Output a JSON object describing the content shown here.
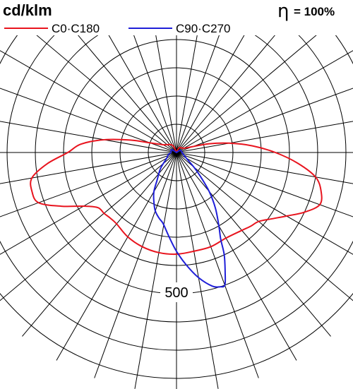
{
  "chart_data": {
    "type": "polar",
    "unit": "cd/klm",
    "efficiency": {
      "symbol": "η",
      "text": "= 100%"
    },
    "radial_tick_labels": [
      "500"
    ],
    "radial_max": 850,
    "grid_ring_step": 100,
    "angle_grid_step_deg": 10,
    "angle_zero": "down",
    "legend_placement": "top-left",
    "series": [
      {
        "name": "C0·C180",
        "color": "#e8141e",
        "points": [
          [
            -180,
            0
          ],
          [
            -150,
            30
          ],
          [
            -120,
            55
          ],
          [
            -110,
            100
          ],
          [
            -105,
            170
          ],
          [
            -100,
            260
          ],
          [
            -95,
            340
          ],
          [
            -90,
            385
          ],
          [
            -85,
            460
          ],
          [
            -80,
            520
          ],
          [
            -75,
            530
          ],
          [
            -70,
            520
          ],
          [
            -65,
            450
          ],
          [
            -60,
            380
          ],
          [
            -55,
            340
          ],
          [
            -50,
            335
          ],
          [
            -45,
            330
          ],
          [
            -40,
            330
          ],
          [
            -30,
            345
          ],
          [
            -20,
            355
          ],
          [
            -10,
            360
          ],
          [
            0,
            360
          ],
          [
            10,
            355
          ],
          [
            20,
            355
          ],
          [
            30,
            350
          ],
          [
            40,
            360
          ],
          [
            45,
            370
          ],
          [
            50,
            380
          ],
          [
            55,
            410
          ],
          [
            60,
            450
          ],
          [
            65,
            500
          ],
          [
            70,
            540
          ],
          [
            75,
            530
          ],
          [
            80,
            500
          ],
          [
            85,
            430
          ],
          [
            90,
            350
          ],
          [
            95,
            270
          ],
          [
            100,
            190
          ],
          [
            105,
            120
          ],
          [
            110,
            60
          ],
          [
            120,
            30
          ],
          [
            150,
            20
          ],
          [
            180,
            0
          ]
        ]
      },
      {
        "name": "C90·C270",
        "color": "#1f1fd8",
        "points": [
          [
            -180,
            0
          ],
          [
            -120,
            20
          ],
          [
            -90,
            20
          ],
          [
            -75,
            30
          ],
          [
            -60,
            40
          ],
          [
            -45,
            80
          ],
          [
            -35,
            120
          ],
          [
            -30,
            160
          ],
          [
            -25,
            190
          ],
          [
            -20,
            220
          ],
          [
            -15,
            240
          ],
          [
            -12,
            250
          ],
          [
            -10,
            260
          ],
          [
            -5,
            300
          ],
          [
            0,
            350
          ],
          [
            5,
            400
          ],
          [
            10,
            450
          ],
          [
            15,
            490
          ],
          [
            18,
            500
          ],
          [
            20,
            500
          ],
          [
            22,
            460
          ],
          [
            25,
            400
          ],
          [
            27,
            345
          ],
          [
            30,
            300
          ],
          [
            35,
            240
          ],
          [
            40,
            180
          ],
          [
            45,
            120
          ],
          [
            50,
            80
          ],
          [
            60,
            40
          ],
          [
            75,
            25
          ],
          [
            90,
            20
          ],
          [
            120,
            15
          ],
          [
            180,
            0
          ]
        ]
      }
    ]
  }
}
